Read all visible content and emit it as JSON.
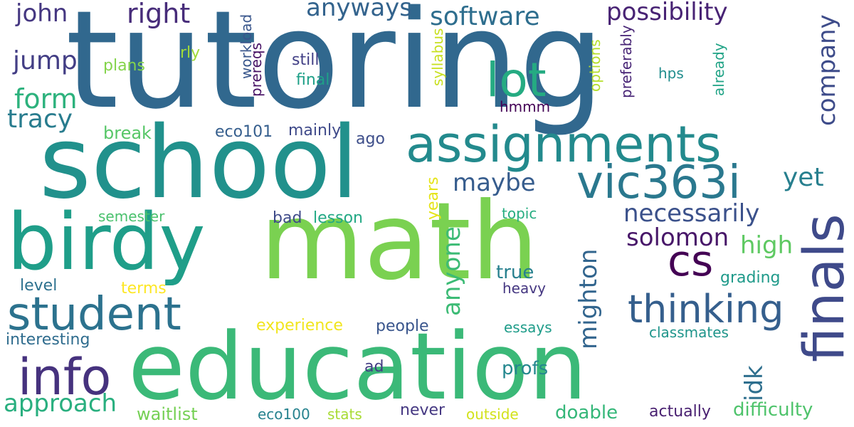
{
  "word_cloud": {
    "background": "#ffffff",
    "words": [
      {
        "text": "tutoring",
        "color": "#31688e"
      },
      {
        "text": "school",
        "color": "#21918c"
      },
      {
        "text": "math",
        "color": "#7ad151"
      },
      {
        "text": "education",
        "color": "#3bb978"
      },
      {
        "text": "birdy",
        "color": "#1f9e89"
      },
      {
        "text": "assignments",
        "color": "#238a8d"
      },
      {
        "text": "student",
        "color": "#2c728e"
      },
      {
        "text": "info",
        "color": "#46327e"
      },
      {
        "text": "vic363i",
        "color": "#2a788e"
      },
      {
        "text": "finals",
        "color": "#3f4a8a"
      },
      {
        "text": "thinking",
        "color": "#355f8d"
      },
      {
        "text": "cs",
        "color": "#440154"
      },
      {
        "text": "lot",
        "color": "#25ab82"
      },
      {
        "text": "john",
        "color": "#453781"
      },
      {
        "text": "right",
        "color": "#472c7a"
      },
      {
        "text": "software",
        "color": "#2e6e8e"
      },
      {
        "text": "possibility",
        "color": "#482374"
      },
      {
        "text": "anyways",
        "color": "#33638d"
      },
      {
        "text": "company",
        "color": "#3e4c8a"
      },
      {
        "text": "jump",
        "color": "#433e85"
      },
      {
        "text": "form",
        "color": "#2db27d"
      },
      {
        "text": "tracy",
        "color": "#287c8e"
      },
      {
        "text": "necessarily",
        "color": "#3b518b"
      },
      {
        "text": "solomon",
        "color": "#481769"
      },
      {
        "text": "maybe",
        "color": "#365c8d"
      },
      {
        "text": "yet",
        "color": "#277f8e"
      },
      {
        "text": "high",
        "color": "#5ec962"
      },
      {
        "text": "anyone",
        "color": "#3cbb75"
      },
      {
        "text": "mighton",
        "color": "#32658e"
      },
      {
        "text": "idk",
        "color": "#2e6f8e"
      },
      {
        "text": "approach",
        "color": "#29af7f"
      },
      {
        "text": "workload",
        "color": "#39568c"
      },
      {
        "text": "prereqs",
        "color": "#471164"
      },
      {
        "text": "syllabus",
        "color": "#c8e020"
      },
      {
        "text": "options",
        "color": "#b5de2b"
      },
      {
        "text": "preferably",
        "color": "#482576"
      },
      {
        "text": "already",
        "color": "#20a386"
      },
      {
        "text": "plans",
        "color": "#84d44b"
      },
      {
        "text": "rly",
        "color": "#a0da39"
      },
      {
        "text": "still",
        "color": "#424086"
      },
      {
        "text": "final",
        "color": "#1fa088"
      },
      {
        "text": "hps",
        "color": "#228d8d"
      },
      {
        "text": "hmmm",
        "color": "#440256"
      },
      {
        "text": "break",
        "color": "#56c667"
      },
      {
        "text": "eco101",
        "color": "#355e8d"
      },
      {
        "text": "mainly",
        "color": "#3e4989"
      },
      {
        "text": "ago",
        "color": "#3d4e8a"
      },
      {
        "text": "years",
        "color": "#e5e419"
      },
      {
        "text": "semester",
        "color": "#4ac16d"
      },
      {
        "text": "topic",
        "color": "#27ad81"
      },
      {
        "text": "bad",
        "color": "#3e4a89"
      },
      {
        "text": "lesson",
        "color": "#22a884"
      },
      {
        "text": "level",
        "color": "#2d718e"
      },
      {
        "text": "terms",
        "color": "#fde725"
      },
      {
        "text": "true",
        "color": "#27808e"
      },
      {
        "text": "heavy",
        "color": "#453781"
      },
      {
        "text": "grading",
        "color": "#1f9a8a"
      },
      {
        "text": "experience",
        "color": "#f1e51d"
      },
      {
        "text": "people",
        "color": "#39558c"
      },
      {
        "text": "essays",
        "color": "#1e9c89"
      },
      {
        "text": "classmates",
        "color": "#1f958b"
      },
      {
        "text": "interesting",
        "color": "#2f6c8e"
      },
      {
        "text": "ad",
        "color": "#433d84"
      },
      {
        "text": "profs",
        "color": "#24878e"
      },
      {
        "text": "waitlist",
        "color": "#75d054"
      },
      {
        "text": "eco100",
        "color": "#26828e"
      },
      {
        "text": "stats",
        "color": "#a8db34"
      },
      {
        "text": "never",
        "color": "#453882"
      },
      {
        "text": "outside",
        "color": "#d2e21b"
      },
      {
        "text": "doable",
        "color": "#35b779"
      },
      {
        "text": "actually",
        "color": "#481f70"
      },
      {
        "text": "difficulty",
        "color": "#4ec36b"
      }
    ]
  }
}
